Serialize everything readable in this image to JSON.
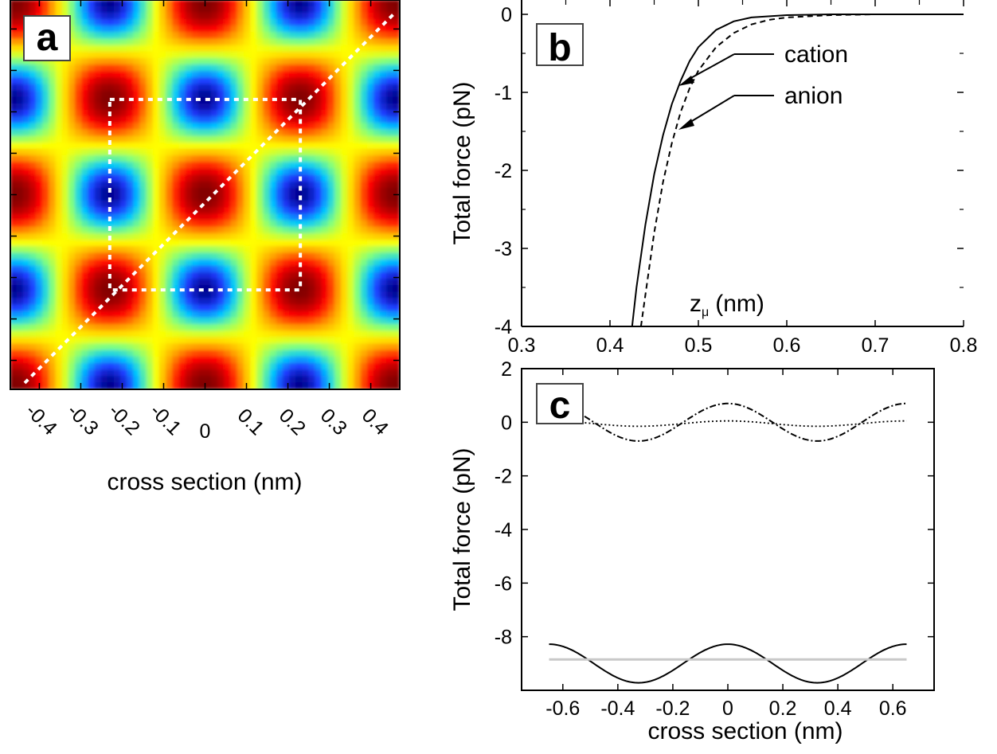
{
  "chart_data": [
    {
      "panel": "a",
      "type": "heatmap",
      "xlabel": "cross section (nm)",
      "x_ticks": [
        "-0.4",
        "-0.3",
        "-0.2",
        "-0.1",
        "0",
        "0.1",
        "0.2",
        "0.3",
        "0.4"
      ],
      "xlim": [
        -0.47,
        0.47
      ],
      "ylim": [
        -0.47,
        0.47
      ],
      "lattice_period_nm": 0.46,
      "minima_centers": [
        [
          -0.23,
          0.23
        ],
        [
          0.23,
          0.23
        ],
        [
          -0.23,
          -0.23
        ],
        [
          0.23,
          -0.23
        ]
      ],
      "maxima_centers": [
        [
          0,
          0
        ],
        [
          0,
          0.46
        ],
        [
          0,
          -0.46
        ],
        [
          -0.46,
          0
        ],
        [
          0.46,
          0
        ]
      ],
      "overlay_square": [
        [
          -0.23,
          -0.23
        ],
        [
          0.23,
          0.23
        ]
      ],
      "overlay_diagonal": [
        [
          -0.47,
          -0.47
        ],
        [
          0.47,
          0.47
        ]
      ],
      "colormap": [
        "#00008a",
        "#1f3cff",
        "#00c8ff",
        "#7fff7f",
        "#ffff00",
        "#ff9900",
        "#ff0000",
        "#800000"
      ]
    },
    {
      "panel": "b",
      "type": "line",
      "ylabel": "Total force (pN)",
      "xlabel_prefix": "z",
      "xlabel_sub": "μ",
      "xlabel_suffix": "(nm)",
      "xlim": [
        0.3,
        0.8
      ],
      "ylim": [
        -4,
        0
      ],
      "x_ticks": [
        "0.3",
        "0.4",
        "0.5",
        "0.6",
        "0.7",
        "0.8"
      ],
      "y_ticks": [
        "0",
        "-1",
        "-2",
        "-3",
        "-4"
      ],
      "series": [
        {
          "name": "cation",
          "style": "solid",
          "x": [
            0.425,
            0.43,
            0.44,
            0.45,
            0.46,
            0.47,
            0.48,
            0.49,
            0.5,
            0.52,
            0.54,
            0.56,
            0.6,
            0.65,
            0.7,
            0.8
          ],
          "y": [
            -4.0,
            -3.5,
            -2.7,
            -2.05,
            -1.55,
            -1.15,
            -0.85,
            -0.6,
            -0.42,
            -0.2,
            -0.09,
            -0.04,
            -0.01,
            0,
            0,
            0
          ]
        },
        {
          "name": "anion",
          "style": "dashed",
          "x": [
            0.435,
            0.44,
            0.45,
            0.46,
            0.47,
            0.48,
            0.49,
            0.5,
            0.52,
            0.54,
            0.56,
            0.58,
            0.6,
            0.65,
            0.7,
            0.8
          ],
          "y": [
            -4.0,
            -3.6,
            -2.8,
            -2.15,
            -1.65,
            -1.25,
            -0.95,
            -0.72,
            -0.42,
            -0.24,
            -0.13,
            -0.07,
            -0.04,
            -0.01,
            0,
            0
          ]
        }
      ]
    },
    {
      "panel": "c",
      "type": "line",
      "xlabel": "cross section (nm)",
      "ylabel": "Total force (pN)",
      "xlim": [
        -0.75,
        0.75
      ],
      "ylim": [
        -10,
        2
      ],
      "x_ticks": [
        "-0.6",
        "-0.4",
        "-0.2",
        "0",
        "0.2",
        "0.4",
        "0.6"
      ],
      "y_ticks": [
        "2",
        "0",
        "-2",
        "-4",
        "-6",
        "-8"
      ],
      "series": [
        {
          "style": "dash-dot",
          "mean": 0,
          "amplitude": 0.7,
          "period": 0.65,
          "x_range": [
            -0.65,
            0.65
          ]
        },
        {
          "style": "dotted",
          "mean": -0.05,
          "amplitude": 0.1,
          "period": 0.65,
          "x_range": [
            -0.65,
            0.65
          ]
        },
        {
          "style": "solid",
          "mean": -9.0,
          "amplitude": 0.72,
          "period": 0.65,
          "x_range": [
            -0.65,
            0.65
          ]
        },
        {
          "style": "solid-gray",
          "mean": -8.85,
          "amplitude": 0,
          "period": 0.65,
          "x_range": [
            -0.65,
            0.65
          ]
        }
      ]
    }
  ]
}
